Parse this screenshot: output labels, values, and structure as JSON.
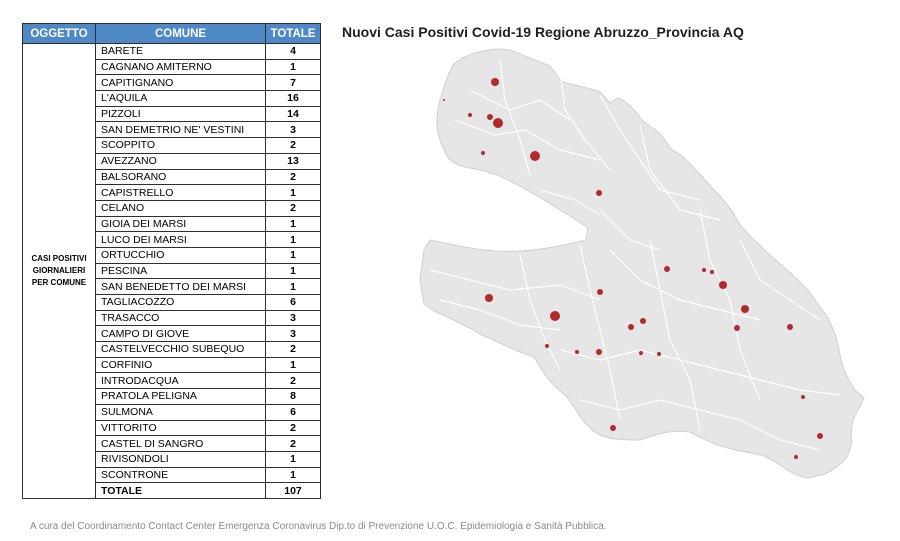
{
  "table": {
    "headers": {
      "oggetto": "OGGETTO",
      "comune": "COMUNE",
      "totale": "TOTALE"
    },
    "category": "CASI POSITIVI GIORNALIERI PER COMUNE",
    "rows": [
      {
        "comune": "BARETE",
        "totale": "4"
      },
      {
        "comune": "CAGNANO AMITERNO",
        "totale": "1"
      },
      {
        "comune": "CAPITIGNANO",
        "totale": "7"
      },
      {
        "comune": "L'AQUILA",
        "totale": "16"
      },
      {
        "comune": "PIZZOLI",
        "totale": "14"
      },
      {
        "comune": "SAN DEMETRIO NE' VESTINI",
        "totale": "3"
      },
      {
        "comune": "SCOPPITO",
        "totale": "2"
      },
      {
        "comune": "AVEZZANO",
        "totale": "13"
      },
      {
        "comune": "BALSORANO",
        "totale": "2"
      },
      {
        "comune": "CAPISTRELLO",
        "totale": "1"
      },
      {
        "comune": "CELANO",
        "totale": "2"
      },
      {
        "comune": "GIOIA DEI MARSI",
        "totale": "1"
      },
      {
        "comune": "LUCO DEI MARSI",
        "totale": "1"
      },
      {
        "comune": "ORTUCCHIO",
        "totale": "1"
      },
      {
        "comune": "PESCINA",
        "totale": "1"
      },
      {
        "comune": "SAN BENEDETTO DEI MARSI",
        "totale": "1"
      },
      {
        "comune": "TAGLIACOZZO",
        "totale": "6"
      },
      {
        "comune": "TRASACCO",
        "totale": "3"
      },
      {
        "comune": "CAMPO DI GIOVE",
        "totale": "3"
      },
      {
        "comune": "CASTELVECCHIO SUBEQUO",
        "totale": "2"
      },
      {
        "comune": "CORFINIO",
        "totale": "1"
      },
      {
        "comune": "INTRODACQUA",
        "totale": "2"
      },
      {
        "comune": "PRATOLA PELIGNA",
        "totale": "8"
      },
      {
        "comune": "SULMONA",
        "totale": "6"
      },
      {
        "comune": "VITTORITO",
        "totale": "2"
      },
      {
        "comune": "CASTEL DI SANGRO",
        "totale": "2"
      },
      {
        "comune": "RIVISONDOLI",
        "totale": "1"
      },
      {
        "comune": "SCONTRONE",
        "totale": "1"
      }
    ],
    "total": {
      "label": "TOTALE",
      "value": "107"
    }
  },
  "map": {
    "title": "Nuovi Casi Positivi Covid-19 Regione Abruzzo_Provincia AQ",
    "fill_color": "#e6e6e6",
    "border_color": "#ffffff",
    "marker_color": "#b22a2e"
  },
  "footer": "A cura del Coordinamento Contact  Center Emergenza Coronavirus  Dip.to di Prevenzione U.O.C. Epidemiologia e Sanità Pubblica."
}
